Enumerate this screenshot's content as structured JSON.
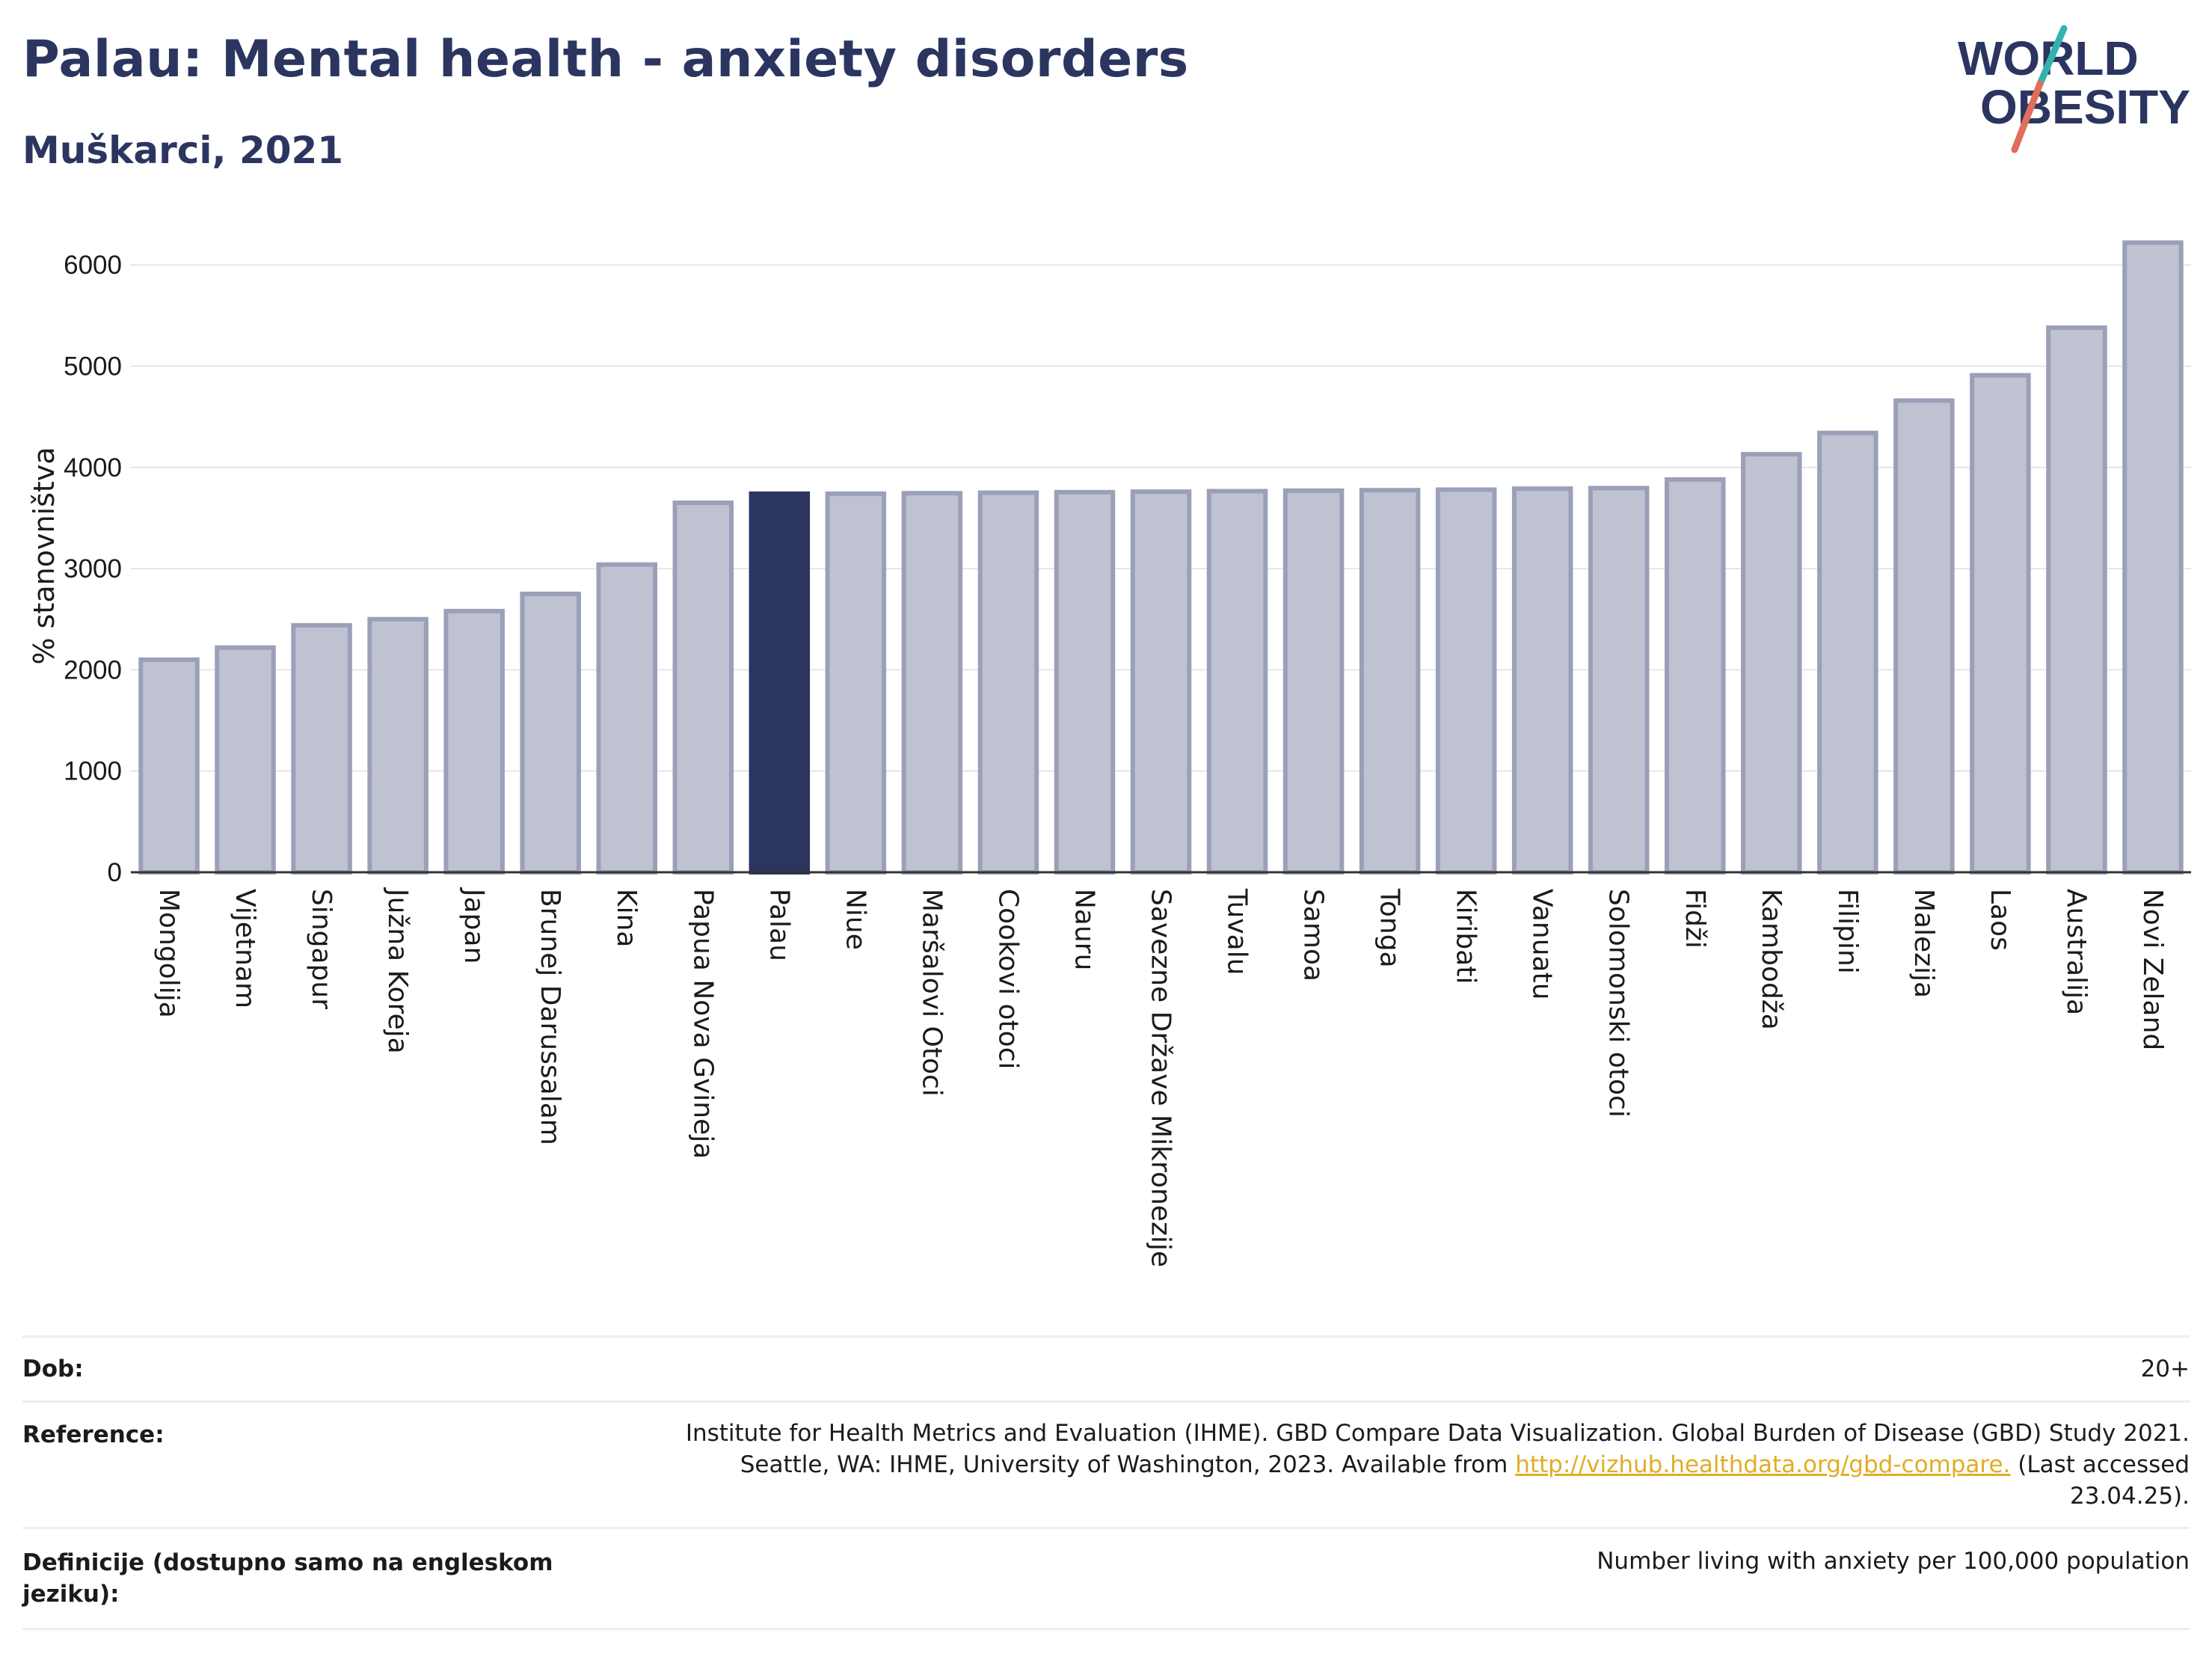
{
  "header": {
    "title": "Palau: Mental health - anxiety disorders",
    "subtitle": "Muškarci, 2021"
  },
  "logo": {
    "line1": "WORLD",
    "line2": "OBESITY",
    "slash_colors": [
      "#34b3ae",
      "#e06e5a"
    ],
    "text_color": "#2b3560"
  },
  "colors": {
    "bar": "#bfc2d1",
    "bar_border": "#9ba0b8",
    "highlight": "#2b3560",
    "axis_text": "#1b1b1b",
    "grid": "#e6e6e6"
  },
  "chart_data": {
    "type": "bar",
    "ylabel": "% stanovništva",
    "ylim": [
      0,
      6400
    ],
    "yticks": [
      0,
      1000,
      2000,
      3000,
      4000,
      5000,
      6000
    ],
    "highlight": "Palau",
    "categories": [
      "Mongolija",
      "Vijetnam",
      "Singapur",
      "Južna Koreja",
      "Japan",
      "Brunej Darussalam",
      "Kina",
      "Papua Nova Gvineja",
      "Palau",
      "Niue",
      "Maršalovi Otoci",
      "Cookovi otoci",
      "Nauru",
      "Savezne Države Mikronezije",
      "Tuvalu",
      "Samoa",
      "Tonga",
      "Kiribati",
      "Vanuatu",
      "Solomonski otoci",
      "Fidži",
      "Kambodža",
      "Filipini",
      "Malezija",
      "Laos",
      "Australija",
      "Novi Zeland"
    ],
    "values": [
      2100,
      2220,
      2440,
      2500,
      2580,
      2750,
      3040,
      3650,
      3740,
      3740,
      3745,
      3750,
      3755,
      3760,
      3765,
      3770,
      3775,
      3780,
      3790,
      3795,
      3880,
      4130,
      4340,
      4660,
      4910,
      5380,
      6220
    ]
  },
  "info": {
    "age_label": "Dob:",
    "age_value": "20+",
    "reference_label": "Reference:",
    "reference_line1": "Institute for Health Metrics and Evaluation (IHME). GBD Compare Data Visualization. Global Burden of Disease (GBD) Study 2021.",
    "reference_line2_pre": "Seattle, WA: IHME, University of Washington, 2023. Available from ",
    "reference_link": "http://vizhub.healthdata.org/gbd-compare.",
    "reference_line2_post": " (Last accessed",
    "reference_line3": "23.04.25).",
    "definition_label": "Definicije (dostupno samo na engleskom jeziku):",
    "definition_value": "Number living with anxiety per 100,000 population"
  }
}
